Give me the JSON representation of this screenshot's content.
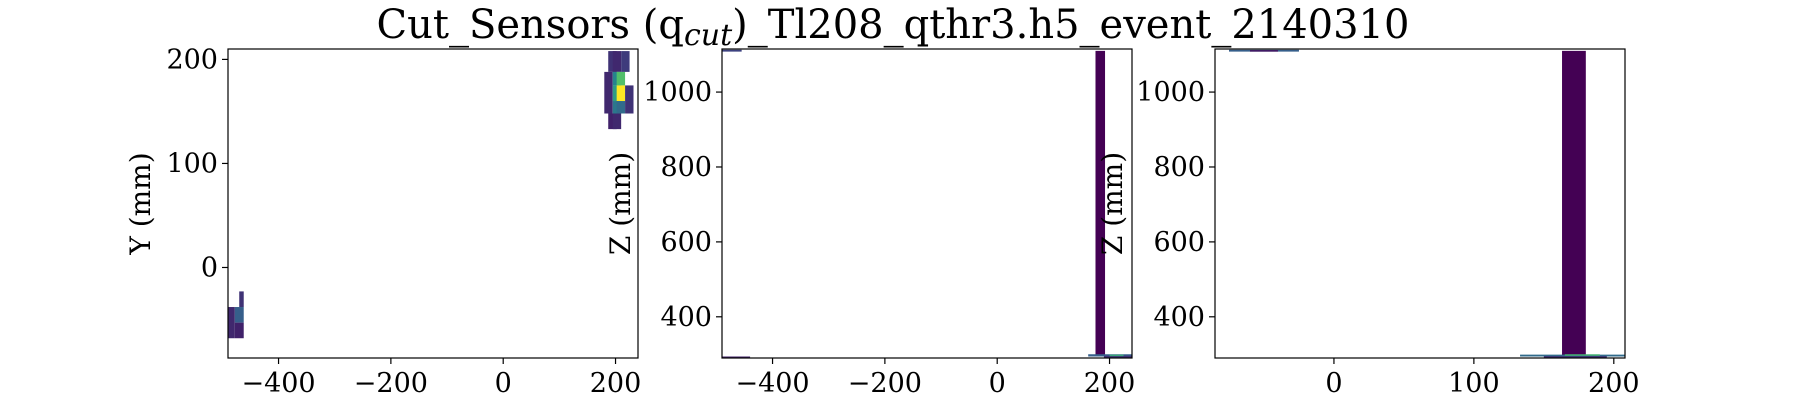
{
  "figure": {
    "title": "Cut_Sensors (q",
    "title_sub": "cut",
    "title_rest": ")_Tl208_qthr3.h5_event_2140310"
  },
  "chart_data": [
    {
      "type": "heatmap",
      "xlim": [
        -490,
        240
      ],
      "ylim": [
        -87,
        210
      ],
      "xticks": [
        -400,
        -200,
        0,
        200
      ],
      "yticks": [
        0,
        100,
        200
      ],
      "xlabel": "",
      "ylabel": "Y (mm)",
      "colormap": "viridis",
      "cells": [
        {
          "x0": 180,
          "x1": 195,
          "y0": 148,
          "y1": 188,
          "v": 0.12
        },
        {
          "x0": 187,
          "x1": 202,
          "y0": 188,
          "y1": 208,
          "v": 0.15
        },
        {
          "x0": 187,
          "x1": 202,
          "y0": 133,
          "y1": 148,
          "v": 0.1
        },
        {
          "x0": 195,
          "x1": 210,
          "y0": 188,
          "y1": 208,
          "v": 0.12
        },
        {
          "x0": 195,
          "x1": 210,
          "y0": 175,
          "y1": 188,
          "v": 0.45
        },
        {
          "x0": 195,
          "x1": 210,
          "y0": 160,
          "y1": 175,
          "v": 0.55
        },
        {
          "x0": 195,
          "x1": 210,
          "y0": 148,
          "y1": 160,
          "v": 0.4
        },
        {
          "x0": 195,
          "x1": 210,
          "y0": 133,
          "y1": 148,
          "v": 0.12
        },
        {
          "x0": 202,
          "x1": 217,
          "y0": 175,
          "y1": 188,
          "v": 0.7
        },
        {
          "x0": 202,
          "x1": 217,
          "y0": 160,
          "y1": 175,
          "v": 1.0
        },
        {
          "x0": 202,
          "x1": 217,
          "y0": 148,
          "y1": 160,
          "v": 0.35
        },
        {
          "x0": 210,
          "x1": 225,
          "y0": 188,
          "y1": 208,
          "v": 0.18
        },
        {
          "x0": 217,
          "x1": 232,
          "y0": 148,
          "y1": 175,
          "v": 0.15
        },
        {
          "x0": -470,
          "x1": -462,
          "y0": -38,
          "y1": -23,
          "v": 0.15
        },
        {
          "x0": -478,
          "x1": -462,
          "y0": -53,
          "y1": -38,
          "v": 0.3
        },
        {
          "x0": -478,
          "x1": -462,
          "y0": -68,
          "y1": -53,
          "v": 0.1
        },
        {
          "x0": -490,
          "x1": -478,
          "y0": -68,
          "y1": -38,
          "v": 0.12
        }
      ]
    },
    {
      "type": "heatmap",
      "xlim": [
        -490,
        240
      ],
      "ylim": [
        290,
        1115
      ],
      "xticks": [
        -400,
        -200,
        0,
        200
      ],
      "yticks": [
        400,
        600,
        800,
        1000
      ],
      "xlabel": "",
      "ylabel": "Z (mm)",
      "colormap": "viridis",
      "cells": [
        {
          "x0": 175,
          "x1": 192,
          "y0": 298,
          "y1": 1110,
          "v": 0.0
        },
        {
          "x0": 162,
          "x1": 240,
          "y0": 294,
          "y1": 300,
          "v": 0.3
        },
        {
          "x0": 190,
          "x1": 240,
          "y0": 290,
          "y1": 296,
          "v": 0.15
        },
        {
          "x0": 200,
          "x1": 225,
          "y0": 296,
          "y1": 299,
          "v": 0.6
        },
        {
          "x0": -490,
          "x1": -455,
          "y0": 1108,
          "y1": 1113,
          "v": 0.2
        },
        {
          "x0": -490,
          "x1": -440,
          "y0": 291,
          "y1": 294,
          "v": 0.1
        }
      ]
    },
    {
      "type": "heatmap",
      "xlim": [
        -85,
        208
      ],
      "ylim": [
        290,
        1115
      ],
      "xticks": [
        0,
        100,
        200
      ],
      "yticks": [
        400,
        600,
        800,
        1000
      ],
      "xlabel": "",
      "ylabel": "Z (mm)",
      "colormap": "viridis",
      "cells": [
        {
          "x0": 163,
          "x1": 180,
          "y0": 298,
          "y1": 1110,
          "v": 0.0
        },
        {
          "x0": 133,
          "x1": 208,
          "y0": 294,
          "y1": 299,
          "v": 0.35
        },
        {
          "x0": 150,
          "x1": 195,
          "y0": 291,
          "y1": 295,
          "v": 0.15
        },
        {
          "x0": 165,
          "x1": 190,
          "y0": 296,
          "y1": 300,
          "v": 0.65
        },
        {
          "x0": -75,
          "x1": -25,
          "y0": 1108,
          "y1": 1113,
          "v": 0.3
        },
        {
          "x0": -60,
          "x1": -40,
          "y0": 1109,
          "y1": 1112,
          "v": 0.05
        }
      ]
    }
  ]
}
